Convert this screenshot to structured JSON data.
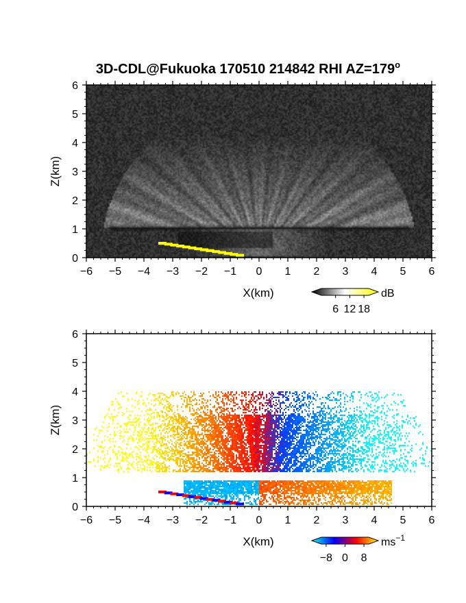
{
  "figure": {
    "title": "3D-CDL@Fukuoka 170510 214842 RHI AZ=179",
    "title_superscript": "o"
  },
  "chart_data": [
    {
      "type": "heatmap",
      "panel": "top",
      "quantity": "signal intensity",
      "xlabel": "X(km)",
      "ylabel": "Z(km)",
      "xlim": [
        -6,
        6
      ],
      "ylim": [
        0,
        6
      ],
      "x_ticks": [
        -6,
        -5,
        -4,
        -3,
        -2,
        -1,
        0,
        1,
        2,
        3,
        4,
        5,
        6
      ],
      "y_ticks": [
        0,
        1,
        2,
        3,
        4,
        5,
        6
      ],
      "colorbar": {
        "unit": "dB",
        "unit_superscript": "",
        "tick_labels": [
          "6",
          "12",
          "18"
        ],
        "tick_values": [
          6,
          12,
          18
        ],
        "range": [
          0,
          20
        ],
        "colors": [
          "#000000",
          "#ffffff",
          "#ffff00"
        ]
      },
      "features": {
        "background": "noisy dark gray",
        "cloud_base_band_km": 1.0,
        "fan_beams_max_height_km": 4.2,
        "low_level_ground_echo_yellow": {
          "x": [
            -3.5,
            -0.6
          ],
          "z": [
            0.5,
            0.05
          ]
        }
      }
    },
    {
      "type": "heatmap",
      "panel": "bottom",
      "quantity": "radial velocity",
      "xlabel": "X(km)",
      "ylabel": "Z(km)",
      "xlim": [
        -6,
        6
      ],
      "ylim": [
        0,
        6
      ],
      "x_ticks": [
        -6,
        -5,
        -4,
        -3,
        -2,
        -1,
        0,
        1,
        2,
        3,
        4,
        5,
        6
      ],
      "y_ticks": [
        0,
        1,
        2,
        3,
        4,
        5,
        6
      ],
      "colorbar": {
        "unit": "ms",
        "unit_superscript": "−1",
        "tick_labels": [
          "−8",
          "0",
          "8"
        ],
        "tick_values": [
          -8,
          0,
          8
        ],
        "range": [
          -10,
          10
        ],
        "colors": [
          "#00ffff",
          "#0000ff",
          "#ff0000",
          "#ffff00"
        ]
      },
      "features": {
        "upper_layer_km": [
          1.2,
          4.0
        ],
        "lower_layer_km": [
          0.1,
          0.9
        ],
        "left_side_velocity": "positive (yellow/orange)",
        "right_side_velocity": "negative (blue/cyan)",
        "lower_layer_left": "negative (blue)",
        "lower_layer_right": "positive (red/orange)"
      }
    }
  ]
}
